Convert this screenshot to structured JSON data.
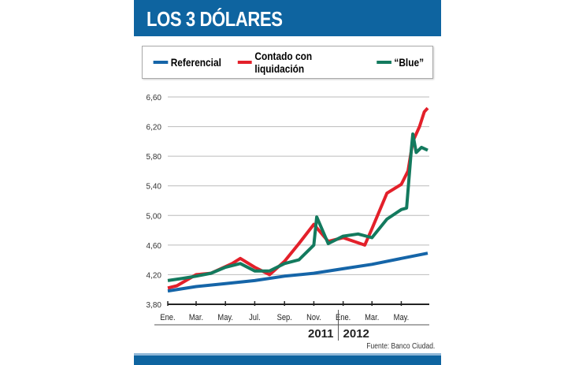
{
  "chart_data": {
    "type": "line",
    "title": "LOS 3 DÓLARES",
    "source": "Fuente: Banco Ciudad.",
    "ylim": [
      3.8,
      6.6
    ],
    "yticks": [
      "3,80",
      "4,20",
      "4,60",
      "5,00",
      "5,40",
      "5,80",
      "6,20",
      "6,60"
    ],
    "ytick_values": [
      3.8,
      4.2,
      4.6,
      5.0,
      5.4,
      5.8,
      6.2,
      6.6
    ],
    "xlim": [
      "2011-01-01",
      "2012-06-25"
    ],
    "xticks": [
      {
        "label": "Ene.",
        "date": "2011-01-01"
      },
      {
        "label": "Mar.",
        "date": "2011-03-01"
      },
      {
        "label": "May.",
        "date": "2011-05-01"
      },
      {
        "label": "Jul.",
        "date": "2011-07-01"
      },
      {
        "label": "Sep.",
        "date": "2011-09-01"
      },
      {
        "label": "Nov.",
        "date": "2011-11-01"
      },
      {
        "label": "Ene.",
        "date": "2012-01-01"
      },
      {
        "label": "Mar.",
        "date": "2012-03-01"
      },
      {
        "label": "May.",
        "date": "2012-05-01"
      }
    ],
    "years": [
      "2011",
      "2012"
    ],
    "grid": true,
    "legend_position": "top",
    "series": [
      {
        "name": "Referencial",
        "color": "#1565a8",
        "points": [
          [
            "2011-01-01",
            3.98
          ],
          [
            "2011-03-01",
            4.04
          ],
          [
            "2011-05-01",
            4.08
          ],
          [
            "2011-07-01",
            4.12
          ],
          [
            "2011-09-01",
            4.18
          ],
          [
            "2011-11-01",
            4.22
          ],
          [
            "2012-01-01",
            4.28
          ],
          [
            "2012-03-01",
            4.34
          ],
          [
            "2012-05-01",
            4.42
          ],
          [
            "2012-06-25",
            4.49
          ]
        ]
      },
      {
        "name": "Contado con liquidación",
        "color": "#e3202a",
        "points": [
          [
            "2011-01-01",
            4.02
          ],
          [
            "2011-01-20",
            4.05
          ],
          [
            "2011-03-01",
            4.2
          ],
          [
            "2011-04-01",
            4.22
          ],
          [
            "2011-05-15",
            4.35
          ],
          [
            "2011-06-01",
            4.42
          ],
          [
            "2011-07-01",
            4.3
          ],
          [
            "2011-08-01",
            4.2
          ],
          [
            "2011-09-01",
            4.38
          ],
          [
            "2011-10-01",
            4.62
          ],
          [
            "2011-11-01",
            4.88
          ],
          [
            "2011-12-01",
            4.65
          ],
          [
            "2012-01-01",
            4.7
          ],
          [
            "2012-02-15",
            4.6
          ],
          [
            "2012-03-01",
            4.82
          ],
          [
            "2012-04-01",
            5.3
          ],
          [
            "2012-05-01",
            5.42
          ],
          [
            "2012-05-15",
            5.6
          ],
          [
            "2012-05-25",
            6.0
          ],
          [
            "2012-06-08",
            6.2
          ],
          [
            "2012-06-18",
            6.4
          ],
          [
            "2012-06-25",
            6.45
          ]
        ]
      },
      {
        "name": "“Blue”",
        "color": "#137a5e",
        "points": [
          [
            "2011-01-01",
            4.12
          ],
          [
            "2011-02-01",
            4.15
          ],
          [
            "2011-03-01",
            4.18
          ],
          [
            "2011-04-01",
            4.22
          ],
          [
            "2011-05-01",
            4.3
          ],
          [
            "2011-06-01",
            4.35
          ],
          [
            "2011-07-01",
            4.25
          ],
          [
            "2011-08-01",
            4.25
          ],
          [
            "2011-09-01",
            4.35
          ],
          [
            "2011-10-01",
            4.4
          ],
          [
            "2011-11-01",
            4.6
          ],
          [
            "2011-11-07",
            4.98
          ],
          [
            "2011-12-01",
            4.62
          ],
          [
            "2012-01-01",
            4.72
          ],
          [
            "2012-02-01",
            4.75
          ],
          [
            "2012-03-01",
            4.7
          ],
          [
            "2012-04-01",
            4.95
          ],
          [
            "2012-05-01",
            5.08
          ],
          [
            "2012-05-12",
            5.1
          ],
          [
            "2012-05-22",
            5.9
          ],
          [
            "2012-05-25",
            6.1
          ],
          [
            "2012-06-01",
            5.85
          ],
          [
            "2012-06-12",
            5.92
          ],
          [
            "2012-06-25",
            5.88
          ]
        ]
      }
    ]
  }
}
